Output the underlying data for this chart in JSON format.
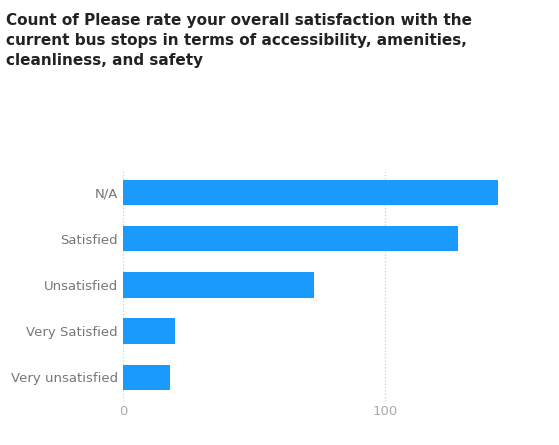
{
  "title_line1": "Count of Please rate your overall satisfaction with the",
  "title_line2": "current bus stops in terms of accessibility, amenities,",
  "title_line3": "cleanliness, and safety",
  "categories": [
    "Very unsatisfied",
    "Very Satisfied",
    "Unsatisfied",
    "Satisfied",
    "N/A"
  ],
  "values": [
    18,
    20,
    73,
    128,
    143
  ],
  "bar_color": "#1a9bfc",
  "background_color": "#ffffff",
  "title_fontsize": 11.0,
  "tick_fontsize": 9.5,
  "xlim_max": 160,
  "xticks": [
    0,
    100
  ],
  "ytick_color": "#777777",
  "xtick_color": "#aaaaaa",
  "grid_color": "#cccccc"
}
